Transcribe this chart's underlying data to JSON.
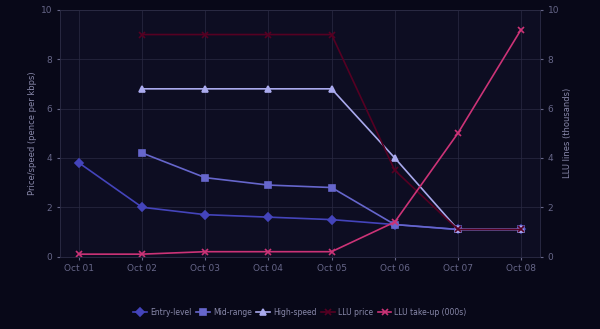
{
  "title": "",
  "x_labels": [
    "Oct 01",
    "Oct 02",
    "Oct 03",
    "Oct 04",
    "Oct 05",
    "Oct 06",
    "Oct 07",
    "Oct 08"
  ],
  "x_values": [
    0,
    1,
    2,
    3,
    4,
    5,
    6,
    7
  ],
  "series": [
    {
      "name": "Entry-level",
      "color": "#4444bb",
      "marker": "D",
      "markersize": 4,
      "linewidth": 1.2,
      "y": [
        3.8,
        2.0,
        1.7,
        1.6,
        1.5,
        1.3,
        1.1,
        1.1
      ]
    },
    {
      "name": "Mid-range",
      "color": "#6666cc",
      "marker": "s",
      "markersize": 4,
      "linewidth": 1.2,
      "y": [
        null,
        4.2,
        3.2,
        2.9,
        2.8,
        1.3,
        1.1,
        1.1
      ]
    },
    {
      "name": "High-speed",
      "color": "#aaaaee",
      "marker": "^",
      "markersize": 4,
      "linewidth": 1.2,
      "y": [
        null,
        6.8,
        6.8,
        6.8,
        6.8,
        4.0,
        1.1,
        1.1
      ]
    },
    {
      "name": "LLU price",
      "color": "#550022",
      "marker": "x",
      "markersize": 5,
      "linewidth": 1.2,
      "y": [
        null,
        9.0,
        9.0,
        9.0,
        9.0,
        3.5,
        1.1,
        1.1
      ]
    },
    {
      "name": "LLU take-up (000s)",
      "color": "#cc3377",
      "marker": "x",
      "markersize": 5,
      "linewidth": 1.2,
      "y": [
        0.1,
        0.1,
        0.2,
        0.2,
        0.2,
        1.4,
        5.0,
        9.2
      ]
    }
  ],
  "ylabel_left": "Price/speed (pence per kbps)",
  "ylabel_right": "LLU lines (thousands)",
  "ylim_left": [
    0,
    10
  ],
  "ylim_right": [
    0,
    10
  ],
  "yticks_left": [
    0,
    2,
    4,
    6,
    8,
    10
  ],
  "yticks_right": [
    0,
    2,
    4,
    6,
    8,
    10
  ],
  "background_color": "#080818",
  "plot_bg_color": "#0d0d22",
  "grid_color": "#2a2a44",
  "spine_color": "#2a2a44",
  "text_color": "#8888aa",
  "tick_color": "#666688",
  "legend_labels": [
    "Entry-level",
    "Mid-range",
    "High-speed",
    "LLU price",
    "LLU take-up (000s)"
  ]
}
